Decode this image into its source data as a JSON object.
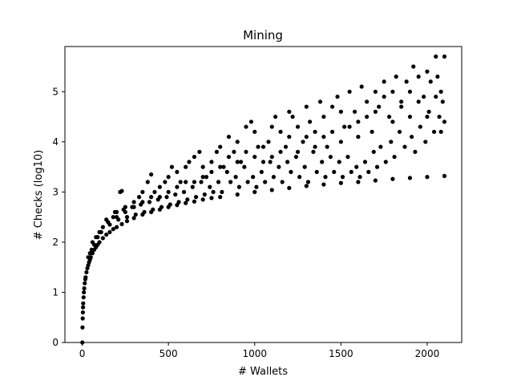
{
  "chart_data": {
    "type": "scatter",
    "title": "Mining",
    "xlabel": "# Wallets",
    "ylabel": "# Checks (log10)",
    "xlim": [
      -100,
      2200
    ],
    "ylim": [
      0,
      5.9
    ],
    "xticks": [
      0,
      500,
      1000,
      1500,
      2000
    ],
    "yticks": [
      0,
      1,
      2,
      3,
      4,
      5
    ],
    "grid": false,
    "legend": "none",
    "marker_color": "#000000",
    "series": [
      {
        "points": [
          [
            1,
            0.0
          ],
          [
            2,
            0.3
          ],
          [
            3,
            0.48
          ],
          [
            4,
            0.6
          ],
          [
            5,
            0.7
          ],
          [
            6,
            0.78
          ],
          [
            8,
            0.9
          ],
          [
            10,
            1.0
          ],
          [
            12,
            1.08
          ],
          [
            15,
            1.18
          ],
          [
            18,
            1.26
          ],
          [
            20,
            1.3
          ],
          [
            25,
            1.4
          ],
          [
            30,
            1.48
          ],
          [
            35,
            1.54
          ],
          [
            40,
            1.6
          ],
          [
            45,
            1.65
          ],
          [
            50,
            1.7
          ],
          [
            60,
            1.78
          ],
          [
            70,
            1.85
          ],
          [
            80,
            1.9
          ],
          [
            90,
            1.95
          ],
          [
            100,
            2.0
          ],
          [
            120,
            2.08
          ],
          [
            140,
            2.15
          ],
          [
            160,
            2.2
          ],
          [
            180,
            2.26
          ],
          [
            200,
            2.3
          ],
          [
            230,
            2.36
          ],
          [
            260,
            2.42
          ],
          [
            300,
            2.48
          ],
          [
            350,
            2.55
          ],
          [
            400,
            2.6
          ],
          [
            450,
            2.65
          ],
          [
            500,
            2.7
          ],
          [
            550,
            2.74
          ],
          [
            600,
            2.78
          ],
          [
            650,
            2.81
          ],
          [
            700,
            2.85
          ],
          [
            750,
            2.88
          ],
          [
            800,
            2.9
          ],
          [
            900,
            2.95
          ],
          [
            1000,
            3.0
          ],
          [
            1100,
            3.04
          ],
          [
            1200,
            3.08
          ],
          [
            1300,
            3.12
          ],
          [
            1400,
            3.15
          ],
          [
            1500,
            3.18
          ],
          [
            1600,
            3.2
          ],
          [
            1700,
            3.23
          ],
          [
            1800,
            3.26
          ],
          [
            1900,
            3.28
          ],
          [
            2000,
            3.3
          ],
          [
            2100,
            3.32
          ],
          [
            60,
            2.0
          ],
          [
            80,
            2.1
          ],
          [
            100,
            2.2
          ],
          [
            120,
            2.3
          ],
          [
            150,
            2.4
          ],
          [
            180,
            2.5
          ],
          [
            200,
            2.6
          ],
          [
            220,
            3.0
          ],
          [
            230,
            3.02
          ],
          [
            250,
            2.7
          ],
          [
            300,
            2.8
          ],
          [
            330,
            2.9
          ],
          [
            350,
            3.0
          ],
          [
            380,
            3.2
          ],
          [
            400,
            3.35
          ],
          [
            420,
            3.0
          ],
          [
            450,
            3.1
          ],
          [
            480,
            3.2
          ],
          [
            500,
            3.3
          ],
          [
            520,
            3.5
          ],
          [
            550,
            3.4
          ],
          [
            570,
            3.2
          ],
          [
            600,
            3.5
          ],
          [
            620,
            3.6
          ],
          [
            650,
            3.7
          ],
          [
            680,
            3.8
          ],
          [
            700,
            3.5
          ],
          [
            720,
            3.3
          ],
          [
            750,
            3.6
          ],
          [
            780,
            3.8
          ],
          [
            800,
            3.9
          ],
          [
            820,
            3.5
          ],
          [
            850,
            4.1
          ],
          [
            880,
            3.8
          ],
          [
            900,
            4.0
          ],
          [
            920,
            3.6
          ],
          [
            950,
            4.3
          ],
          [
            980,
            4.4
          ],
          [
            1000,
            4.2
          ],
          [
            1020,
            3.9
          ],
          [
            1050,
            3.6
          ],
          [
            1080,
            4.0
          ],
          [
            1100,
            4.3
          ],
          [
            1120,
            4.5
          ],
          [
            1150,
            4.2
          ],
          [
            1180,
            3.9
          ],
          [
            1200,
            4.6
          ],
          [
            1220,
            4.5
          ],
          [
            1250,
            4.3
          ],
          [
            1280,
            4.0
          ],
          [
            1300,
            4.7
          ],
          [
            1320,
            4.4
          ],
          [
            1350,
            4.2
          ],
          [
            1380,
            4.8
          ],
          [
            1400,
            4.5
          ],
          [
            1420,
            3.9
          ],
          [
            1450,
            4.7
          ],
          [
            1480,
            4.9
          ],
          [
            1500,
            4.6
          ],
          [
            1520,
            4.3
          ],
          [
            1550,
            5.0
          ],
          [
            1580,
            4.6
          ],
          [
            1600,
            4.4
          ],
          [
            1620,
            5.1
          ],
          [
            1650,
            4.8
          ],
          [
            1680,
            4.2
          ],
          [
            1700,
            5.0
          ],
          [
            1720,
            4.7
          ],
          [
            1750,
            5.2
          ],
          [
            1780,
            4.5
          ],
          [
            1800,
            5.0
          ],
          [
            1820,
            5.3
          ],
          [
            1850,
            4.8
          ],
          [
            1880,
            5.2
          ],
          [
            1900,
            5.0
          ],
          [
            1920,
            5.5
          ],
          [
            1950,
            5.3
          ],
          [
            1980,
            4.9
          ],
          [
            2000,
            5.4
          ],
          [
            2020,
            5.2
          ],
          [
            2050,
            5.7
          ],
          [
            2060,
            5.3
          ],
          [
            2080,
            5.0
          ],
          [
            2100,
            5.7
          ],
          [
            2090,
            4.8
          ],
          [
            2070,
            4.5
          ],
          [
            2040,
            4.2
          ],
          [
            2010,
            4.6
          ],
          [
            1990,
            4.0
          ],
          [
            1960,
            4.3
          ],
          [
            1930,
            3.8
          ],
          [
            1910,
            4.1
          ],
          [
            1870,
            3.9
          ],
          [
            1840,
            4.2
          ],
          [
            1810,
            3.7
          ],
          [
            1790,
            4.0
          ],
          [
            1760,
            3.6
          ],
          [
            1730,
            3.9
          ],
          [
            1710,
            3.5
          ],
          [
            1690,
            3.8
          ],
          [
            1660,
            3.4
          ],
          [
            1640,
            3.6
          ],
          [
            1610,
            3.3
          ],
          [
            1590,
            3.5
          ],
          [
            1560,
            3.4
          ],
          [
            1540,
            3.7
          ],
          [
            1510,
            3.3
          ],
          [
            1490,
            3.6
          ],
          [
            1460,
            3.4
          ],
          [
            1440,
            3.7
          ],
          [
            1410,
            3.3
          ],
          [
            1390,
            3.6
          ],
          [
            1360,
            3.4
          ],
          [
            1340,
            3.8
          ],
          [
            1310,
            3.2
          ],
          [
            1290,
            3.5
          ],
          [
            1260,
            3.3
          ],
          [
            1240,
            3.7
          ],
          [
            1210,
            3.4
          ],
          [
            1190,
            3.6
          ],
          [
            1160,
            3.2
          ],
          [
            1140,
            3.5
          ],
          [
            1110,
            3.3
          ],
          [
            1090,
            3.6
          ],
          [
            1060,
            3.2
          ],
          [
            1040,
            3.4
          ],
          [
            1010,
            3.1
          ],
          [
            990,
            3.3
          ],
          [
            960,
            3.2
          ],
          [
            940,
            3.5
          ],
          [
            910,
            3.1
          ],
          [
            890,
            3.3
          ],
          [
            860,
            3.2
          ],
          [
            840,
            3.4
          ],
          [
            810,
            3.0
          ],
          [
            790,
            3.2
          ],
          [
            760,
            3.0
          ],
          [
            740,
            3.1
          ],
          [
            710,
            2.95
          ],
          [
            690,
            3.2
          ],
          [
            660,
            2.9
          ],
          [
            640,
            3.1
          ],
          [
            610,
            2.85
          ],
          [
            590,
            3.0
          ],
          [
            560,
            2.8
          ],
          [
            540,
            2.95
          ],
          [
            510,
            2.75
          ],
          [
            490,
            2.9
          ],
          [
            460,
            2.7
          ],
          [
            440,
            2.85
          ],
          [
            410,
            2.65
          ],
          [
            390,
            2.8
          ],
          [
            360,
            2.6
          ],
          [
            340,
            2.75
          ],
          [
            310,
            2.55
          ],
          [
            290,
            2.7
          ],
          [
            260,
            2.5
          ],
          [
            240,
            2.65
          ],
          [
            210,
            2.45
          ],
          [
            190,
            2.6
          ],
          [
            160,
            2.35
          ],
          [
            140,
            2.45
          ],
          [
            110,
            2.2
          ],
          [
            90,
            2.1
          ],
          [
            70,
            1.95
          ],
          [
            55,
            1.85
          ],
          [
            45,
            1.78
          ],
          [
            35,
            1.7
          ],
          [
            1700,
            4.6
          ],
          [
            1750,
            4.9
          ],
          [
            1800,
            4.4
          ],
          [
            1850,
            4.7
          ],
          [
            1900,
            4.5
          ],
          [
            1950,
            4.8
          ],
          [
            2000,
            4.5
          ],
          [
            2050,
            4.9
          ],
          [
            2100,
            4.4
          ],
          [
            2080,
            4.2
          ],
          [
            1450,
            4.2
          ],
          [
            1500,
            4.0
          ],
          [
            1550,
            4.3
          ],
          [
            1600,
            4.1
          ],
          [
            1650,
            4.5
          ],
          [
            1400,
            4.1
          ],
          [
            1350,
            3.9
          ],
          [
            1300,
            4.1
          ],
          [
            1250,
            3.8
          ],
          [
            1200,
            4.1
          ],
          [
            1150,
            3.8
          ],
          [
            1100,
            3.7
          ],
          [
            1050,
            3.9
          ],
          [
            1000,
            3.7
          ],
          [
            950,
            3.8
          ],
          [
            900,
            3.6
          ],
          [
            850,
            3.7
          ],
          [
            800,
            3.5
          ],
          [
            750,
            3.4
          ],
          [
            700,
            3.3
          ],
          [
            650,
            3.2
          ],
          [
            600,
            3.2
          ],
          [
            550,
            3.1
          ],
          [
            500,
            3.0
          ],
          [
            450,
            2.9
          ],
          [
            400,
            2.9
          ],
          [
            350,
            2.8
          ],
          [
            300,
            2.7
          ],
          [
            250,
            2.6
          ],
          [
            200,
            2.5
          ]
        ]
      }
    ]
  }
}
